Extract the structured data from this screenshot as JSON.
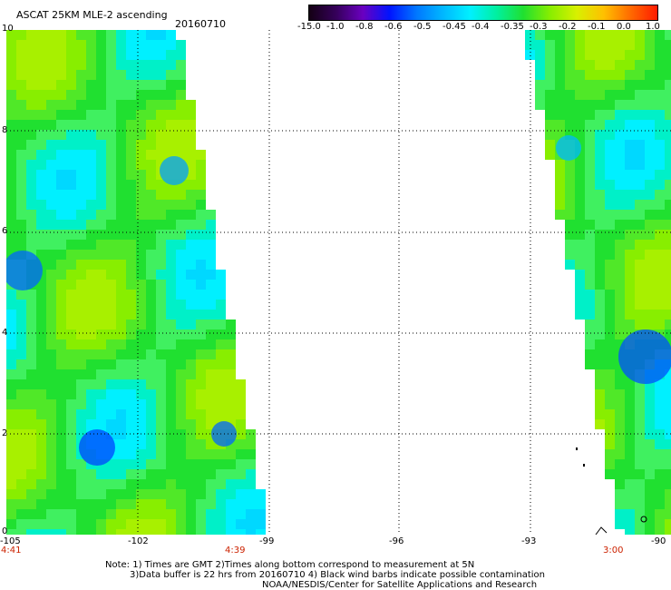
{
  "header": {
    "title": "ASCAT 25KM MLE-2 ascending",
    "date": "20160710"
  },
  "colorbar": {
    "labels": [
      "-15.0",
      "-1.0",
      "-0.8",
      "-0.6",
      "-0.5",
      "-0.45",
      "-0.4",
      "-0.35",
      "-0.3",
      "-0.2",
      "-0.1",
      "0.0",
      "1.0"
    ],
    "colors": [
      "#140014",
      "#35005a",
      "#6a00c0",
      "#0014ff",
      "#0077ff",
      "#00b8ff",
      "#00f0ff",
      "#00f0a0",
      "#20e030",
      "#88ee00",
      "#d8f000",
      "#ffc000",
      "#ff6a00",
      "#ff1a00"
    ]
  },
  "axes": {
    "x_ticks": [
      "-105",
      "-102",
      "-99",
      "-96",
      "-93",
      "-90"
    ],
    "y_ticks": [
      "0",
      "2",
      "4",
      "6",
      "8",
      "10"
    ]
  },
  "times": {
    "left": "4:41",
    "mid": "4:39",
    "right": "3:00"
  },
  "notes": {
    "line1": "Note: 1) Times are GMT 2)Times along bottom correspond to measurement at 5N",
    "line2": "3)Data buffer is 22 hrs from 20160710 4) Black wind barbs indicate possible contamination",
    "line3": "NOAA/NESDIS/Center for Satellite Applications and Research"
  }
}
